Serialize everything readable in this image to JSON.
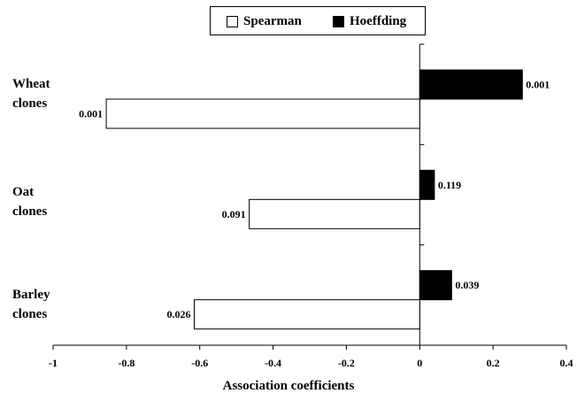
{
  "chart_data": {
    "type": "bar",
    "orientation": "horizontal",
    "categories": [
      "Wheat clones",
      "Oat clones",
      "Barley clones"
    ],
    "category_lines": [
      [
        "Wheat",
        "clones"
      ],
      [
        "Oat",
        "clones"
      ],
      [
        "Barley",
        "clones"
      ]
    ],
    "series": [
      {
        "name": "Spearman",
        "values": [
          -0.855,
          -0.465,
          -0.615
        ],
        "labels": [
          "0.001",
          "0.091",
          "0.026"
        ],
        "color": "#ffffff"
      },
      {
        "name": "Hoeffding",
        "values": [
          0.28,
          0.04,
          0.087
        ],
        "labels": [
          "0.001",
          "0.119",
          "0.039"
        ],
        "color": "#000000"
      }
    ],
    "xlabel": "Association coefficients",
    "ylabel": "",
    "xlim": [
      -1,
      0.4
    ],
    "xticks": [
      -1,
      -0.8,
      -0.6,
      -0.4,
      -0.2,
      0,
      0.2,
      0.4
    ],
    "xtick_labels": [
      "-1",
      "-0.8",
      "-0.6",
      "-0.4",
      "-0.2",
      "0",
      "0.2",
      "0.4"
    ],
    "grid": false,
    "legend_position": "top-center"
  }
}
